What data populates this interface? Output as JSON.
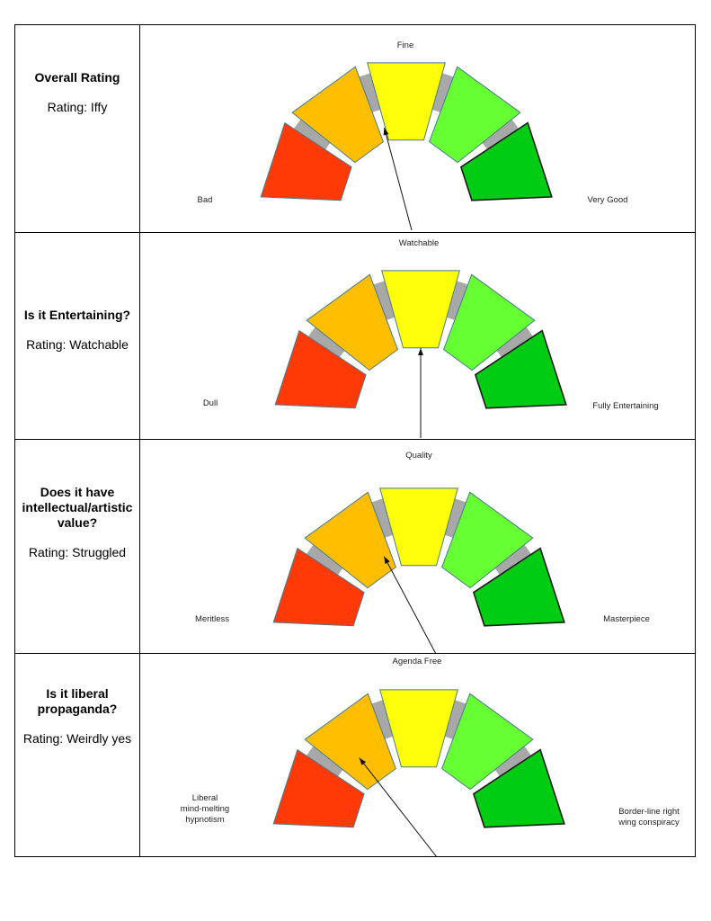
{
  "rows": [
    {
      "question": "Overall Rating",
      "rating": "Rating: Iffy",
      "top_label": "Fine",
      "left_label": [
        "Bad"
      ],
      "right_label": [
        "Very Good"
      ]
    },
    {
      "question": "Is it Entertaining?",
      "rating": "Rating: Watchable",
      "top_label": "Watchable",
      "left_label": [
        "Dull"
      ],
      "right_label": [
        "Fully Entertaining"
      ]
    },
    {
      "question": "Does it have intellectual/artistic value?",
      "rating": "Rating: Struggled",
      "top_label": "Quality",
      "left_label": [
        "Meritless"
      ],
      "right_label": [
        "Masterpiece"
      ]
    },
    {
      "question": "Is it liberal propaganda?",
      "rating": "Rating: Weirdly yes",
      "top_label": "Agenda Free",
      "left_label": [
        "Liberal",
        "mind-melting",
        "hypnotism"
      ],
      "right_label": [
        "Border-line right",
        "wing conspiracy"
      ]
    }
  ],
  "segment_colors": [
    "#ff3a06",
    "#ffbf00",
    "#ffff0a",
    "#66ff33",
    "#00cc14"
  ],
  "track_color": "#a8a8a8"
}
